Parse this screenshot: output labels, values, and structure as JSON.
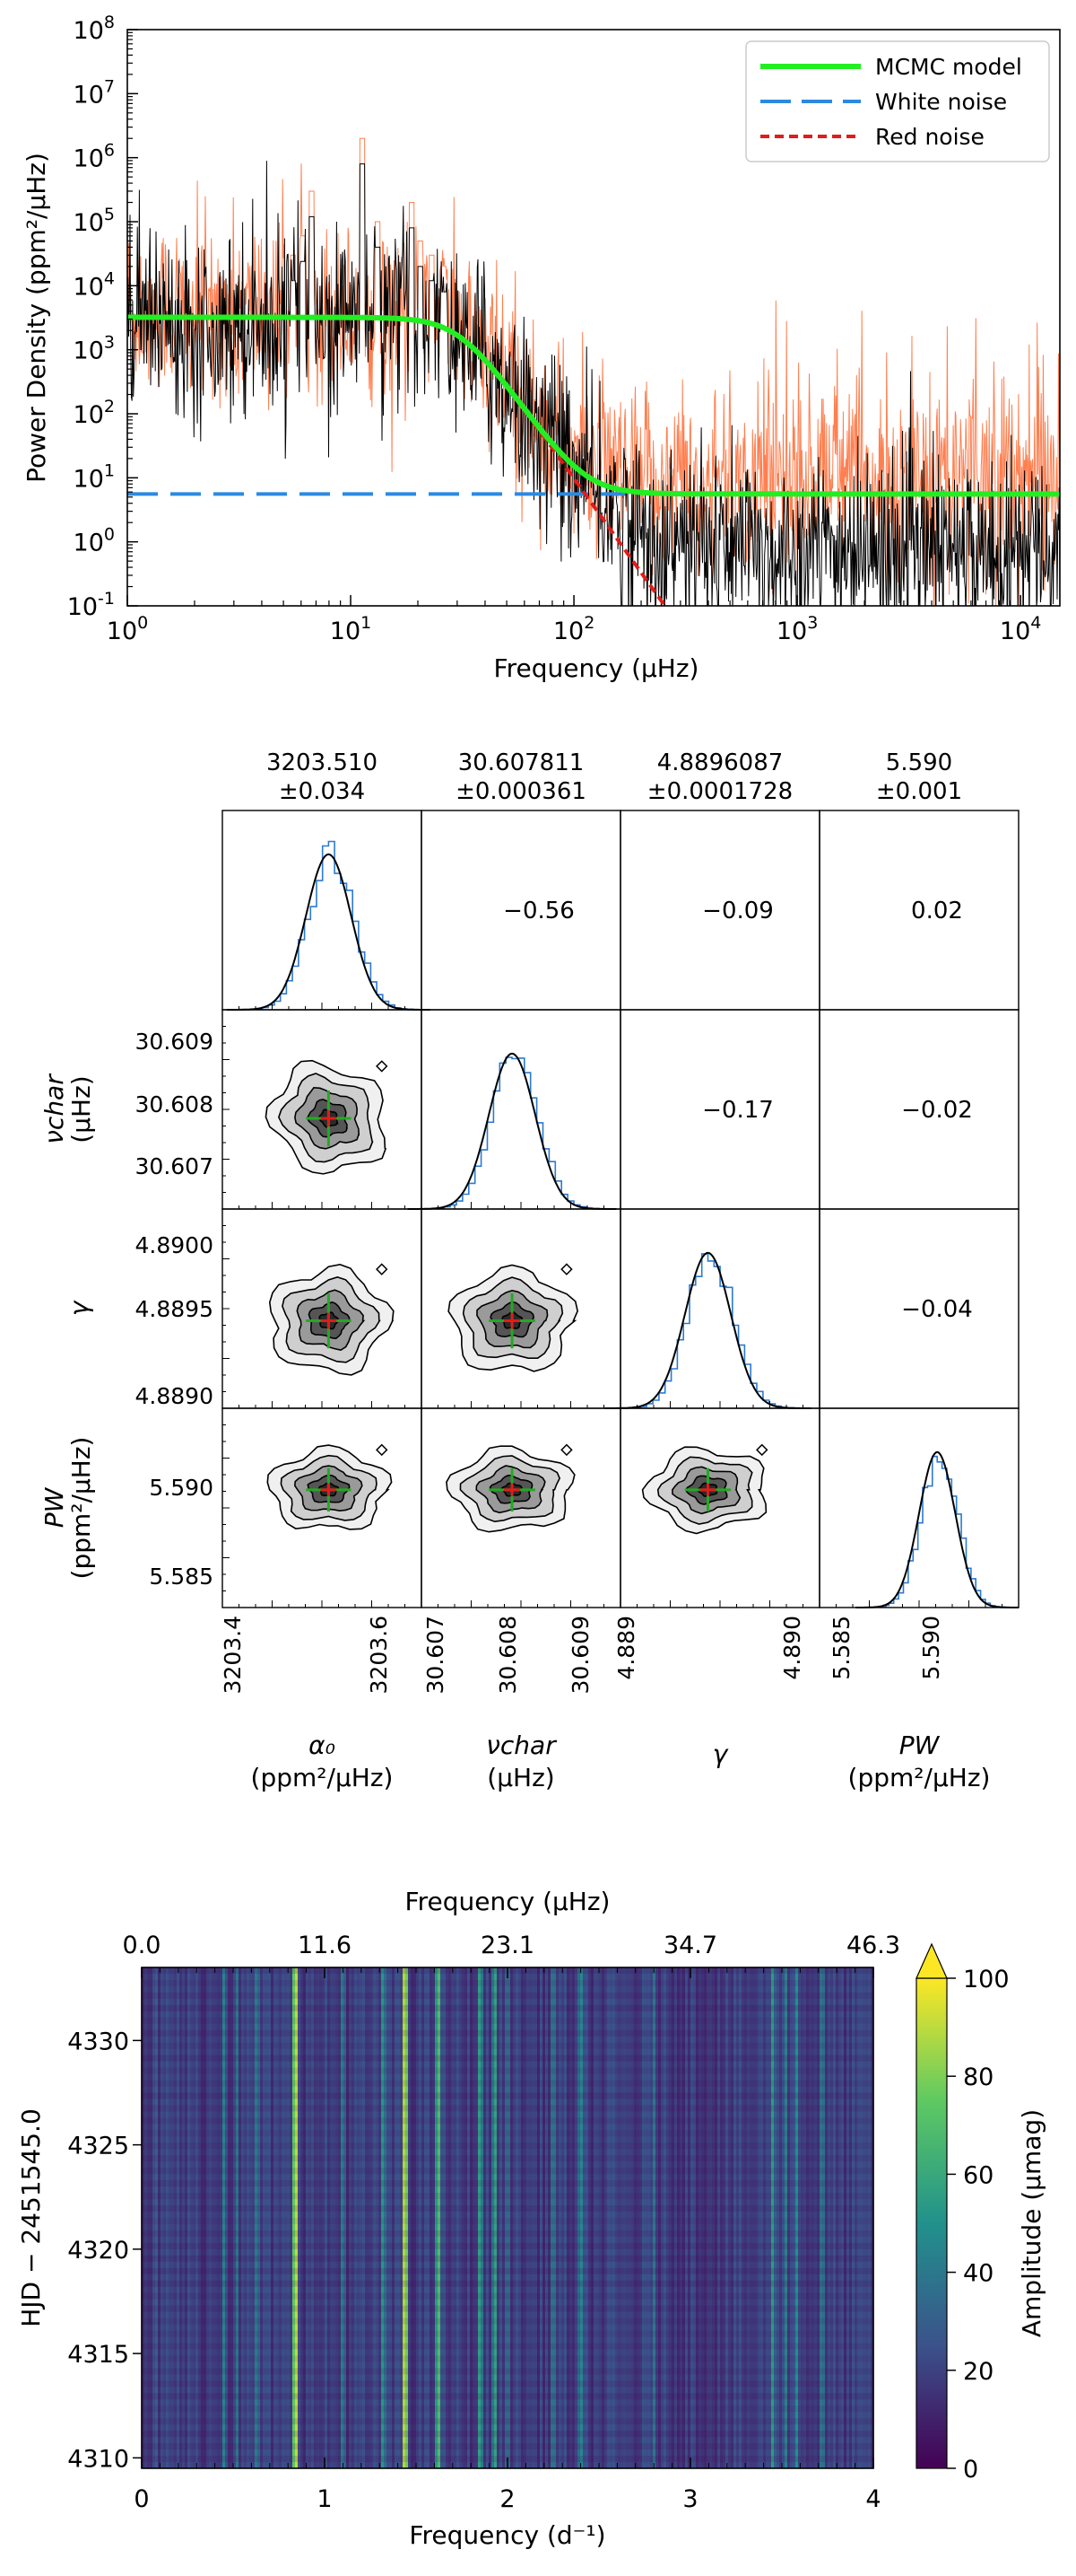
{
  "chart_data": [
    {
      "type": "line",
      "panel": "power-density-spectrum",
      "xscale": "log",
      "yscale": "log",
      "xlim": [
        1,
        15000
      ],
      "ylim": [
        0.1,
        100000000
      ],
      "xlabel": "Frequency (μHz)",
      "ylabel": "Power Density (ppm²/μHz)",
      "xticks": [
        "10^0",
        "10^1",
        "10^2",
        "10^3",
        "10^4"
      ],
      "yticks": [
        "10^-1",
        "10^0",
        "10^1",
        "10^2",
        "10^3",
        "10^4",
        "10^5",
        "10^6",
        "10^7",
        "10^8"
      ],
      "legend_location": "top-right",
      "legend": [
        "MCMC model",
        "White noise",
        "Red noise"
      ],
      "series": [
        {
          "name": "MCMC model",
          "color": "#22ee22",
          "style": "solid",
          "model": {
            "alpha0": 3203.51,
            "nu_char": 30.607811,
            "gamma": 4.8896087,
            "Pw": 5.59
          }
        },
        {
          "name": "White noise",
          "color": "#2b8ae0",
          "style": "long-dash",
          "value": 5.59
        },
        {
          "name": "Red noise",
          "color": "#e01c1c",
          "style": "short-dash",
          "model": {
            "alpha0": 3203.51,
            "nu_char": 30.607811,
            "gamma": 4.8896087
          }
        },
        {
          "style": "spectrum",
          "color": "#000000",
          "x_range": [
            1,
            15000
          ],
          "level_low_freq": 4000,
          "level_high_freq": 1
        },
        {
          "style": "spectrum",
          "color": "#ff7f50",
          "x_range": [
            1,
            15000
          ],
          "level_low_freq": 5000,
          "level_high_freq": 10
        }
      ],
      "peaks": [
        {
          "x": 5.5,
          "y": 30000
        },
        {
          "x": 6.1,
          "y": 60000
        },
        {
          "x": 6.7,
          "y": 300000
        },
        {
          "x": 11.3,
          "y": 2000000
        },
        {
          "x": 13.2,
          "y": 100000
        },
        {
          "x": 18.7,
          "y": 200000
        },
        {
          "x": 20.5,
          "y": 50000
        },
        {
          "x": 23,
          "y": 30000
        },
        {
          "x": 26,
          "y": 20000
        }
      ]
    },
    {
      "type": "scatter",
      "panel": "corner-plot",
      "parameters": [
        {
          "symbol": "α₀",
          "unit": "(ppm²/μHz)",
          "value": "3203.510",
          "error": "±0.034",
          "range": [
            3203.35,
            3203.65
          ],
          "ticks": [
            "3203.4",
            "3203.6"
          ],
          "mean": 3203.51,
          "sigma": 0.034
        },
        {
          "symbol": "νchar",
          "unit": "(μHz)",
          "value": "30.607811",
          "error": "±0.000361",
          "range": [
            30.6064,
            30.6095
          ],
          "ticks": [
            "30.607",
            "30.608",
            "30.609"
          ],
          "mean": 30.607811,
          "sigma": 0.000361
        },
        {
          "symbol": "γ",
          "unit": "",
          "value": "4.8896087",
          "error": "±0.0001728",
          "range": [
            4.88895,
            4.89045
          ],
          "ticks": [
            "4.889",
            "4.890"
          ],
          "mean": 4.8896087,
          "sigma": 0.0001728
        },
        {
          "symbol": "PW",
          "unit": "(ppm²/μHz)",
          "value": "5.590",
          "error": "±0.001",
          "range": [
            5.5835,
            5.5945
          ],
          "ticks": [
            "5.585",
            "5.590"
          ],
          "mean": 5.59,
          "sigma": 0.001
        }
      ],
      "y_ticks": {
        "row1": [
          "30.609",
          "30.608",
          "30.607"
        ],
        "row2": [
          "4.8900",
          "4.8895",
          "4.8890"
        ],
        "row3": [
          "5.590",
          "5.585"
        ]
      },
      "correlations": [
        {
          "row": 0,
          "col": 1,
          "value": "−0.56"
        },
        {
          "row": 0,
          "col": 2,
          "value": "−0.09"
        },
        {
          "row": 0,
          "col": 3,
          "value": "0.02"
        },
        {
          "row": 1,
          "col": 2,
          "value": "−0.17"
        },
        {
          "row": 1,
          "col": 3,
          "value": "−0.02"
        },
        {
          "row": 2,
          "col": 3,
          "value": "−0.04"
        }
      ],
      "colors": {
        "histogram": "#2b7bd0",
        "gaussian_fit": "#000000",
        "error_bars": "#22aa22",
        "best_fit_point": "#e01c1c"
      }
    },
    {
      "type": "heatmap",
      "panel": "sliding-amplitude-spectrum",
      "xlabel": "Frequency (d⁻¹)",
      "xlim": [
        0,
        4
      ],
      "xticks": [
        "0",
        "1",
        "2",
        "3",
        "4"
      ],
      "top_xlabel": "Frequency (μHz)",
      "top_xticks": [
        "0.0",
        "11.6",
        "23.1",
        "34.7",
        "46.3"
      ],
      "ylabel": "HJD − 2451545.0",
      "ylim": [
        4309.5,
        4333.5
      ],
      "yticks": [
        "4310",
        "4315",
        "4320",
        "4325",
        "4330"
      ],
      "colorbar_label": "Amplitude (μmag)",
      "colorbar_range": [
        0,
        100
      ],
      "colorbar_ticks": [
        "0",
        "20",
        "40",
        "60",
        "80",
        "100"
      ],
      "colormap": "viridis",
      "peaks": [
        {
          "freq": 0.84,
          "amplitude": 100
        },
        {
          "freq": 0.45,
          "amplitude": 45
        },
        {
          "freq": 0.52,
          "amplitude": 40
        },
        {
          "freq": 0.63,
          "amplitude": 45
        },
        {
          "freq": 1.1,
          "amplitude": 45
        },
        {
          "freq": 1.32,
          "amplitude": 55
        },
        {
          "freq": 1.44,
          "amplitude": 100
        },
        {
          "freq": 1.62,
          "amplitude": 75
        },
        {
          "freq": 1.85,
          "amplitude": 60
        },
        {
          "freq": 1.93,
          "amplitude": 60
        },
        {
          "freq": 2.0,
          "amplitude": 40
        },
        {
          "freq": 2.25,
          "amplitude": 45
        },
        {
          "freq": 2.4,
          "amplitude": 50
        },
        {
          "freq": 2.8,
          "amplitude": 40
        },
        {
          "freq": 3.45,
          "amplitude": 55
        },
        {
          "freq": 3.52,
          "amplitude": 45
        },
        {
          "freq": 3.58,
          "amplitude": 50
        },
        {
          "freq": 3.72,
          "amplitude": 45
        },
        {
          "freq": 0.2,
          "amplitude": 25
        },
        {
          "freq": 0.08,
          "amplitude": 30
        }
      ]
    }
  ]
}
